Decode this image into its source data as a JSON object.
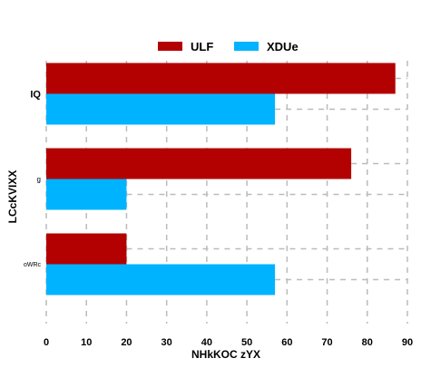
{
  "chart_data": {
    "type": "bar",
    "orientation": "horizontal",
    "title": "",
    "xlabel": "NHkKOC zYX",
    "ylabel": "LCcKVIXX",
    "xlim": [
      0,
      90
    ],
    "xticks": [
      0,
      10,
      20,
      30,
      40,
      50,
      60,
      70,
      80,
      90
    ],
    "categories": [
      "IQ",
      "g",
      "oWRc"
    ],
    "series": [
      {
        "name": "ULF",
        "color": "#b30000",
        "values": [
          87,
          76,
          20
        ]
      },
      {
        "name": "XDUe",
        "color": "#00b3ff",
        "values": [
          57,
          20,
          57
        ]
      }
    ],
    "grid": true,
    "grid_style": "dashed",
    "legend_position": "top-center"
  }
}
